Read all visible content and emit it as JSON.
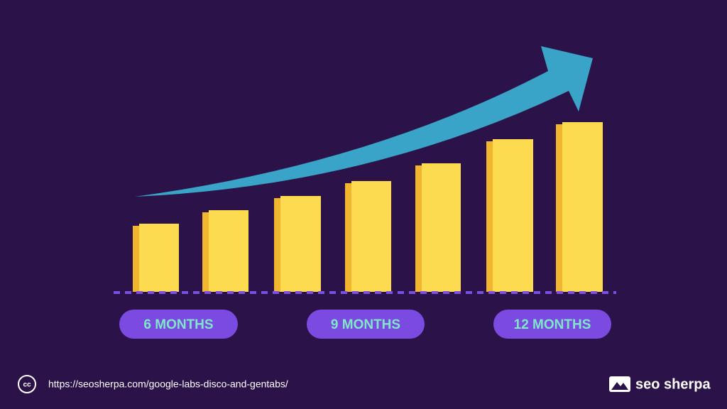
{
  "labels": [
    "6 MONTHS",
    "9 MONTHS",
    "12 MONTHS"
  ],
  "footer": {
    "license_icon": "cc",
    "url": "https://seosherpa.com/google-labs-disco-and-gentabs/",
    "brand": "seo sherpa"
  }
}
